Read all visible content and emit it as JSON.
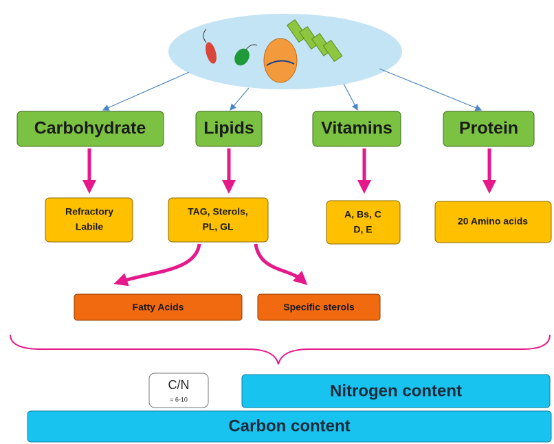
{
  "groups": [
    {
      "label": "Carbohydrate",
      "components": [
        "Refractory",
        "Labile"
      ]
    },
    {
      "label": "Lipids",
      "components": [
        "TAG, Sterols,",
        "PL, GL"
      ]
    },
    {
      "label": "Vitamins",
      "components": [
        "A, Bs, C",
        "D, E"
      ]
    },
    {
      "label": "Protein",
      "components": [
        "20 Amino acids"
      ]
    }
  ],
  "lipid_products": [
    "Fatty Acids",
    "Specific sterols"
  ],
  "ratio": {
    "label": "C/N",
    "value": "= 6-10"
  },
  "nitrogen": "Nitrogen content",
  "carbon": "Carbon content"
}
